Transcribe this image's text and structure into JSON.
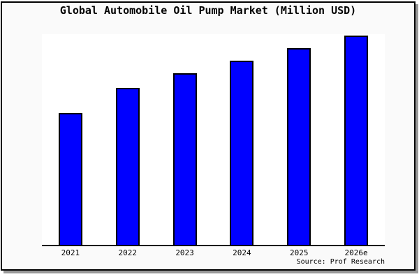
{
  "chart_data": {
    "type": "bar",
    "title": "Global Automobile Oil Pump Market (Million USD)",
    "categories": [
      "2021",
      "2022",
      "2023",
      "2024",
      "2025",
      "2026e"
    ],
    "values": [
      63,
      75,
      82,
      88,
      94,
      100
    ],
    "values_scale": "relative estimate, tallest bar normalized to 100 (no y-axis tick labels shown in image)",
    "xlabel": "",
    "ylabel": "",
    "ylim": [
      0,
      100.7
    ],
    "y_axis_shown": false,
    "grid": false,
    "legend": false,
    "source": "Source: Prof Research",
    "colors": {
      "bar_fill": "#0000ff",
      "bar_border": "#000000",
      "figure_background": "#fafafa",
      "plot_background": "#ffffff",
      "frame_border": "#000000",
      "frame_shadow": "#999999",
      "text": "#000000"
    }
  }
}
